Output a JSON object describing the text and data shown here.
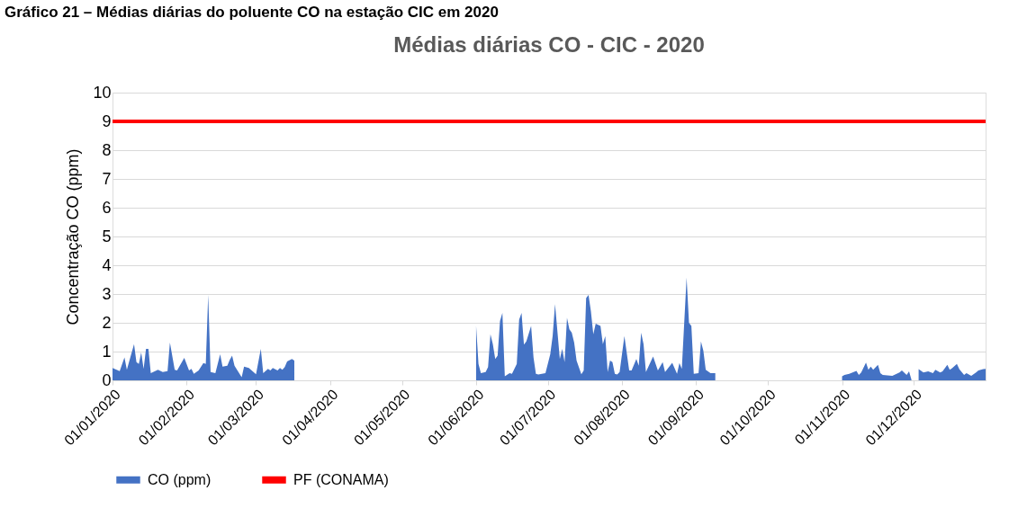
{
  "chart_data": {
    "type": "area",
    "title": "Médias diárias CO - CIC - 2020",
    "ylabel": "Concentração CO (ppm)",
    "annotations": [
      "Gráfico 21 – Médias diárias do poluente CO na estação CIC em 2020"
    ],
    "xlim": [
      "2020-01-01",
      "2020-12-31"
    ],
    "xticks": [
      {
        "value": "2020-01-01",
        "label": "01/01/2020"
      },
      {
        "value": "2020-02-01",
        "label": "01/02/2020"
      },
      {
        "value": "2020-03-01",
        "label": "01/03/2020"
      },
      {
        "value": "2020-04-01",
        "label": "01/04/2020"
      },
      {
        "value": "2020-05-01",
        "label": "01/05/2020"
      },
      {
        "value": "2020-06-01",
        "label": "01/06/2020"
      },
      {
        "value": "2020-07-01",
        "label": "01/07/2020"
      },
      {
        "value": "2020-08-01",
        "label": "01/08/2020"
      },
      {
        "value": "2020-09-01",
        "label": "01/09/2020"
      },
      {
        "value": "2020-10-01",
        "label": "01/10/2020"
      },
      {
        "value": "2020-11-01",
        "label": "01/11/2020"
      },
      {
        "value": "2020-12-01",
        "label": "01/12/2020"
      }
    ],
    "ylim": [
      0,
      10
    ],
    "yticks": [
      0,
      1,
      2,
      3,
      4,
      5,
      6,
      7,
      8,
      9,
      10
    ],
    "grid": "y",
    "legend": "bottom",
    "series": [
      {
        "name": "CO (ppm)",
        "color": "#4472c4",
        "x": [
          "2020-01-01",
          "2020-01-04",
          "2020-01-06",
          "2020-01-07",
          "2020-01-10",
          "2020-01-11",
          "2020-01-12",
          "2020-01-13",
          "2020-01-14",
          "2020-01-15",
          "2020-01-16",
          "2020-01-17",
          "2020-01-20",
          "2020-01-22",
          "2020-01-24",
          "2020-01-25",
          "2020-01-27",
          "2020-01-28",
          "2020-01-31",
          "2020-02-02",
          "2020-02-03",
          "2020-02-04",
          "2020-02-06",
          "2020-02-08",
          "2020-02-09",
          "2020-02-10",
          "2020-02-11",
          "2020-02-13",
          "2020-02-15",
          "2020-02-16",
          "2020-02-18",
          "2020-02-19",
          "2020-02-20",
          "2020-02-21",
          "2020-02-24",
          "2020-02-25",
          "2020-02-27",
          "2020-03-01",
          "2020-03-03",
          "2020-03-04",
          "2020-03-06",
          "2020-03-07",
          "2020-03-08",
          "2020-03-10",
          "2020-03-11",
          "2020-03-12",
          "2020-03-13",
          "2020-03-14",
          "2020-03-16",
          "2020-03-17",
          "2020-04-15",
          "2020-06-01",
          "2020-06-02",
          "2020-06-03",
          "2020-06-05",
          "2020-06-06",
          "2020-06-07",
          "2020-06-08",
          "2020-06-09",
          "2020-06-10",
          "2020-06-11",
          "2020-06-12",
          "2020-06-13",
          "2020-06-15",
          "2020-06-16",
          "2020-06-18",
          "2020-06-19",
          "2020-06-20",
          "2020-06-21",
          "2020-06-22",
          "2020-06-24",
          "2020-06-25",
          "2020-06-26",
          "2020-06-27",
          "2020-06-30",
          "2020-07-02",
          "2020-07-03",
          "2020-07-04",
          "2020-07-06",
          "2020-07-07",
          "2020-07-08",
          "2020-07-09",
          "2020-07-10",
          "2020-07-11",
          "2020-07-12",
          "2020-07-13",
          "2020-07-15",
          "2020-07-16",
          "2020-07-17",
          "2020-07-18",
          "2020-07-19",
          "2020-07-20",
          "2020-07-21",
          "2020-07-23",
          "2020-07-24",
          "2020-07-25",
          "2020-07-26",
          "2020-07-27",
          "2020-07-28",
          "2020-07-29",
          "2020-07-30",
          "2020-07-31",
          "2020-08-02",
          "2020-08-04",
          "2020-08-05",
          "2020-08-07",
          "2020-08-08",
          "2020-08-09",
          "2020-08-10",
          "2020-08-11",
          "2020-08-14",
          "2020-08-16",
          "2020-08-18",
          "2020-08-19",
          "2020-08-22",
          "2020-08-24",
          "2020-08-25",
          "2020-08-26",
          "2020-08-28",
          "2020-08-29",
          "2020-08-30",
          "2020-08-31",
          "2020-09-02",
          "2020-09-03",
          "2020-09-04",
          "2020-09-05",
          "2020-09-07",
          "2020-09-09",
          "2020-10-05",
          "2020-11-01",
          "2020-11-02",
          "2020-11-04",
          "2020-11-07",
          "2020-11-08",
          "2020-11-09",
          "2020-11-11",
          "2020-11-12",
          "2020-11-13",
          "2020-11-14",
          "2020-11-16",
          "2020-11-17",
          "2020-11-18",
          "2020-11-22",
          "2020-11-25",
          "2020-11-26",
          "2020-11-28",
          "2020-11-29",
          "2020-11-30",
          "2020-12-01",
          "2020-12-03",
          "2020-12-05",
          "2020-12-07",
          "2020-12-09",
          "2020-12-10",
          "2020-12-12",
          "2020-12-13",
          "2020-12-15",
          "2020-12-16",
          "2020-12-17",
          "2020-12-19",
          "2020-12-20",
          "2020-12-22",
          "2020-12-23",
          "2020-12-25",
          "2020-12-27",
          "2020-12-28",
          "2020-12-30",
          "2020-12-31"
        ],
        "values": [
          0.43,
          0.32,
          0.8,
          0.37,
          1.26,
          0.63,
          0.57,
          0.97,
          0.4,
          1.09,
          1.09,
          0.25,
          0.37,
          0.29,
          0.32,
          1.31,
          0.37,
          0.34,
          0.78,
          0.34,
          0.4,
          0.23,
          0.34,
          0.6,
          0.57,
          2.97,
          0.29,
          0.25,
          0.91,
          0.48,
          0.51,
          0.71,
          0.86,
          0.51,
          0.11,
          0.48,
          0.43,
          0.21,
          1.09,
          0.25,
          0.4,
          0.34,
          0.43,
          0.34,
          0.43,
          0.37,
          0.46,
          0.66,
          0.74,
          0.69,
          null,
          1.89,
          0.57,
          0.25,
          0.29,
          0.46,
          1.6,
          1.26,
          0.74,
          0.86,
          2.06,
          2.34,
          0.14,
          0.25,
          0.23,
          0.57,
          2.11,
          2.34,
          1.24,
          1.35,
          1.89,
          0.8,
          0.23,
          0.2,
          0.25,
          0.91,
          1.54,
          2.65,
          0.74,
          1.09,
          0.63,
          2.17,
          1.77,
          1.66,
          1.31,
          0.69,
          0.21,
          0.34,
          2.86,
          2.97,
          2.4,
          1.6,
          1.97,
          1.89,
          1.26,
          1.54,
          0.29,
          0.69,
          0.63,
          0.23,
          0.2,
          0.29,
          1.54,
          0.34,
          0.34,
          0.74,
          0.51,
          1.66,
          1.26,
          0.29,
          0.83,
          0.34,
          0.63,
          0.29,
          0.61,
          0.23,
          0.6,
          0.4,
          3.57,
          2.0,
          1.89,
          0.23,
          0.25,
          1.35,
          1.03,
          0.37,
          0.25,
          0.25,
          null,
          0.14,
          0.19,
          0.23,
          0.33,
          0.19,
          0.27,
          0.62,
          0.37,
          0.48,
          0.37,
          0.54,
          0.25,
          0.19,
          0.16,
          0.27,
          0.34,
          0.19,
          0.31,
          0.02,
          null,
          0.39,
          0.27,
          0.31,
          0.25,
          0.37,
          0.27,
          0.31,
          0.54,
          0.37,
          0.42,
          0.57,
          0.39,
          0.19,
          0.25,
          0.16,
          0.27,
          0.34,
          0.39,
          0.4
        ]
      }
    ],
    "ref_lines": [
      {
        "axis": "y",
        "value": 9,
        "label": "PF (CONAMA)",
        "color": "#ff0000"
      }
    ]
  }
}
